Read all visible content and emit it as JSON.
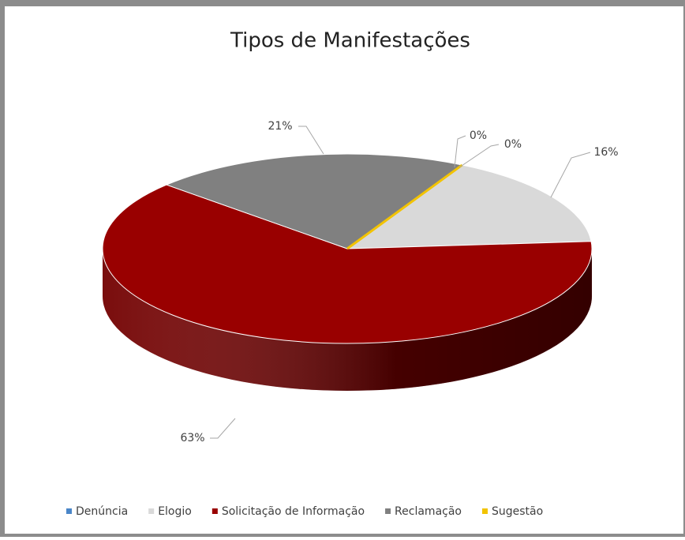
{
  "chart_data": {
    "type": "pie3d",
    "title": "Tipos de Manifestações",
    "categories": [
      "Denúncia",
      "Elogio",
      "Solicitação de Informação",
      "Reclamação",
      "Sugestão"
    ],
    "values": [
      0,
      16,
      63,
      21,
      0
    ],
    "value_labels": [
      "0%",
      "16%",
      "63%",
      "21%",
      "0%"
    ],
    "colors": [
      "#4a86c8",
      "#d9d9d9",
      "#990000",
      "#808080",
      "#f2c300"
    ],
    "legend": "bottom"
  }
}
